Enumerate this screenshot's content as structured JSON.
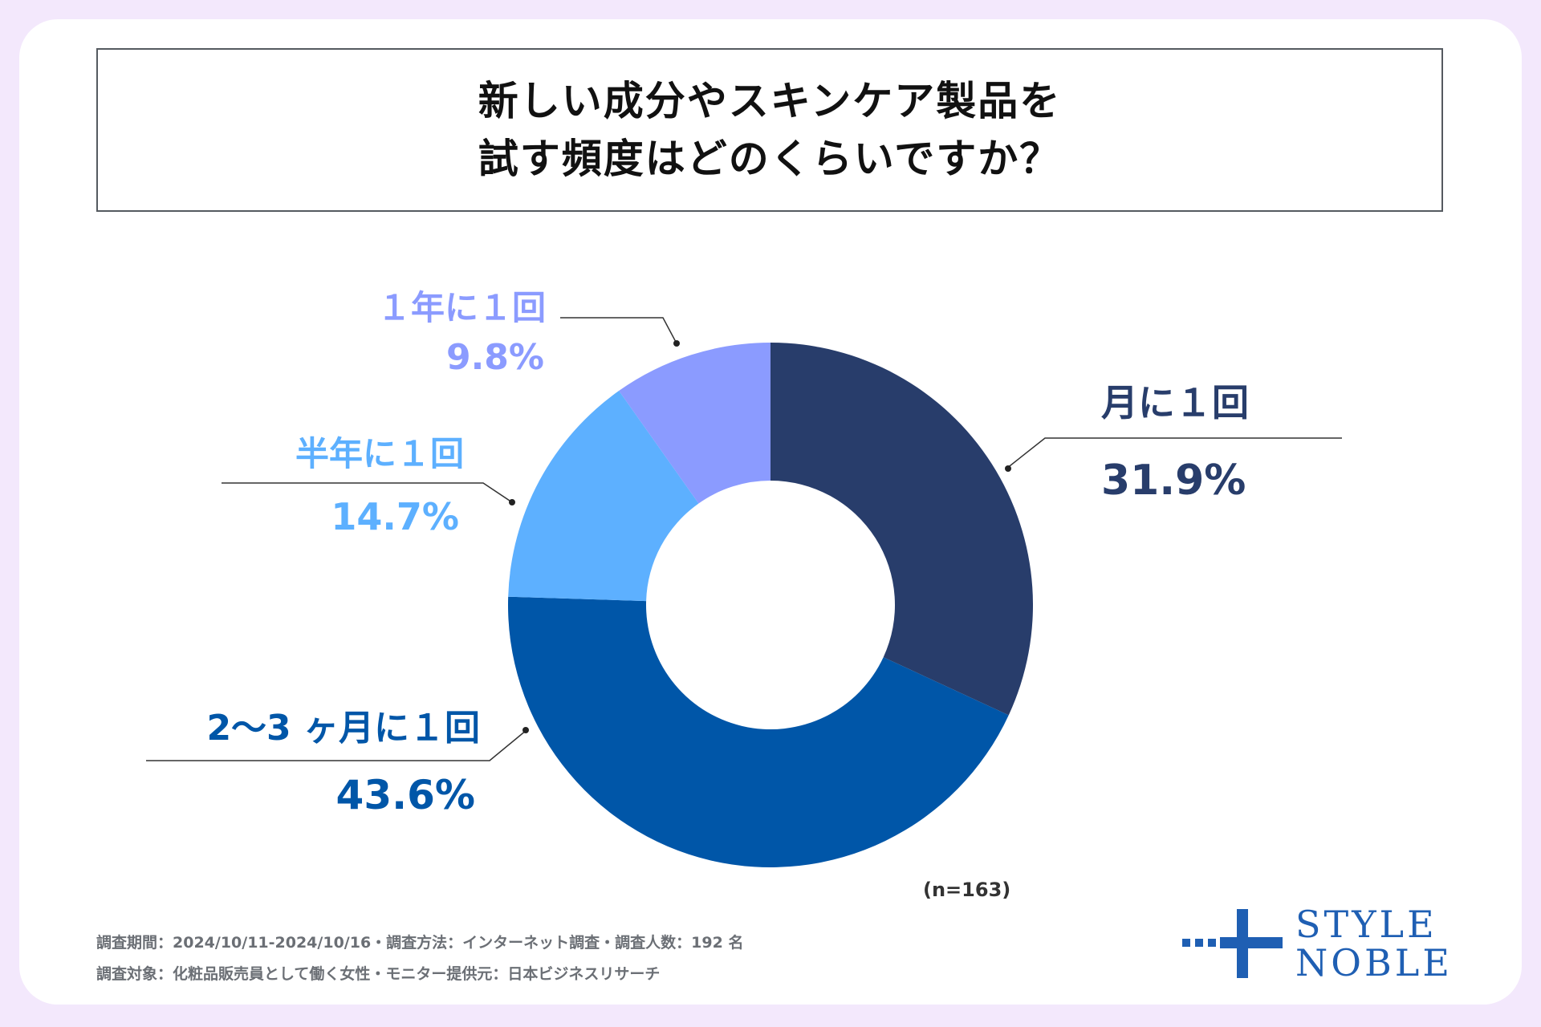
{
  "title": {
    "line1": "新しい成分やスキンケア製品を",
    "line2": "試す頻度はどのくらいですか？"
  },
  "chart_data": {
    "type": "pie",
    "variant": "donut",
    "title": "新しい成分やスキンケア製品を試す頻度はどのくらいですか？",
    "categories": [
      "月に１回",
      "2〜3ヶ月に１回",
      "半年に１回",
      "１年に１回"
    ],
    "values": [
      31.9,
      43.6,
      14.7,
      9.8
    ],
    "value_labels": [
      "31.9%",
      "43.6%",
      "14.7%",
      "9.8%"
    ],
    "colors": [
      "#283d6b",
      "#0056a8",
      "#5db0ff",
      "#8b9bff"
    ],
    "sample_size": "(n=163)"
  },
  "labels": {
    "monthly": {
      "name": "月に１回",
      "pct": "31.9%"
    },
    "bimonthly": {
      "name": "2〜3 ヶ月に１回",
      "pct": "43.6%"
    },
    "halfyear": {
      "name": "半年に１回",
      "pct": "14.7%"
    },
    "yearly": {
      "name": "１年に１回",
      "pct": "9.8%"
    }
  },
  "footer": {
    "line1": "調査期間：2024/10/11-2024/10/16・調査方法：インターネット調査・調査人数：192 名",
    "line2": "調査対象：化粧品販売員として働く女性・モニター提供元：日本ビジネスリサーチ"
  },
  "logo": {
    "line1": "STYLE",
    "line2": "NOBLE"
  }
}
